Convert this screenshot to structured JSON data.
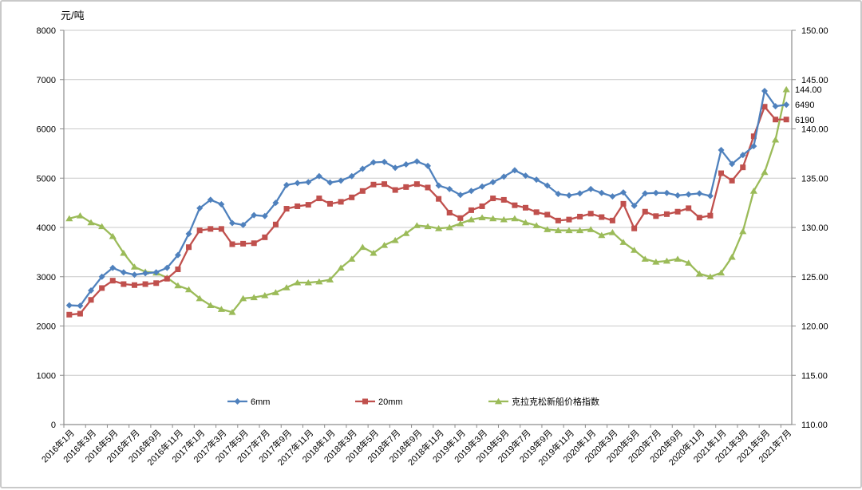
{
  "chart_data": {
    "type": "line",
    "title": "元/吨",
    "n_points": 67,
    "x_step_per_label": 2,
    "x_tick_labels": [
      "2016年1月",
      "2016年3月",
      "2016年5月",
      "2016年7月",
      "2016年9月",
      "2016年11月",
      "2017年1月",
      "2017年3月",
      "2017年5月",
      "2017年7月",
      "2017年9月",
      "2017年11月",
      "2018年1月",
      "2018年3月",
      "2018年5月",
      "2018年7月",
      "2018年9月",
      "2018年11月",
      "2019年1月",
      "2019年3月",
      "2019年5月",
      "2019年7月",
      "2019年9月",
      "2019年11月",
      "2020年1月",
      "2020年3月",
      "2020年5月",
      "2020年7月",
      "2020年9月",
      "2020年11月",
      "2021年1月",
      "2021年3月",
      "2021年5月",
      "2021年7月"
    ],
    "left_axis": {
      "min": 0,
      "max": 8000,
      "step": 1000,
      "labels": [
        "0",
        "1000",
        "2000",
        "3000",
        "4000",
        "5000",
        "6000",
        "7000",
        "8000"
      ]
    },
    "right_axis": {
      "min": 110,
      "max": 150,
      "step": 5,
      "labels": [
        "110.00",
        "115.00",
        "120.00",
        "125.00",
        "130.00",
        "135.00",
        "140.00",
        "145.00",
        "150.00"
      ]
    },
    "grid": true,
    "legend_position": "bottom-inside",
    "series": [
      {
        "name": "6mm",
        "axis": "left",
        "color": "#4F81BD",
        "marker": "diamond",
        "values": [
          2420,
          2410,
          2720,
          3000,
          3180,
          3090,
          3040,
          3070,
          3090,
          3180,
          3440,
          3870,
          4390,
          4560,
          4470,
          4090,
          4050,
          4250,
          4230,
          4500,
          4860,
          4900,
          4920,
          5040,
          4910,
          4950,
          5040,
          5190,
          5320,
          5330,
          5210,
          5280,
          5340,
          5250,
          4850,
          4780,
          4660,
          4740,
          4830,
          4920,
          5030,
          5160,
          5050,
          4970,
          4850,
          4680,
          4650,
          4690,
          4780,
          4700,
          4630,
          4710,
          4440,
          4690,
          4700,
          4700,
          4650,
          4670,
          4690,
          4640,
          5570,
          5290,
          5470,
          5650,
          6770,
          6460,
          6490
        ]
      },
      {
        "name": "20mm",
        "axis": "left",
        "color": "#C0504D",
        "marker": "square",
        "values": [
          2230,
          2250,
          2530,
          2770,
          2920,
          2850,
          2830,
          2850,
          2870,
          2960,
          3150,
          3600,
          3940,
          3970,
          3970,
          3660,
          3670,
          3680,
          3800,
          4060,
          4380,
          4430,
          4460,
          4590,
          4480,
          4520,
          4610,
          4740,
          4870,
          4880,
          4760,
          4820,
          4880,
          4810,
          4580,
          4300,
          4190,
          4350,
          4430,
          4590,
          4560,
          4450,
          4400,
          4310,
          4260,
          4140,
          4160,
          4220,
          4280,
          4210,
          4140,
          4480,
          3980,
          4320,
          4230,
          4270,
          4320,
          4390,
          4200,
          4240,
          5100,
          4950,
          5220,
          5850,
          6450,
          6190,
          6190
        ]
      },
      {
        "name": "克拉克松新船价格指数",
        "axis": "right",
        "color": "#9BBB59",
        "marker": "triangle",
        "values": [
          130.9,
          131.2,
          130.5,
          130.1,
          129.1,
          127.4,
          126.0,
          125.5,
          125.4,
          124.9,
          124.1,
          123.7,
          122.8,
          122.1,
          121.7,
          121.4,
          122.8,
          122.9,
          123.1,
          123.4,
          123.9,
          124.4,
          124.4,
          124.5,
          124.7,
          125.9,
          126.8,
          128.0,
          127.4,
          128.2,
          128.7,
          129.4,
          130.2,
          130.1,
          129.9,
          130.0,
          130.4,
          130.8,
          131.0,
          130.9,
          130.8,
          130.9,
          130.5,
          130.2,
          129.8,
          129.7,
          129.7,
          129.7,
          129.8,
          129.2,
          129.5,
          128.5,
          127.7,
          126.8,
          126.5,
          126.6,
          126.8,
          126.4,
          125.3,
          125.0,
          125.4,
          127.0,
          129.6,
          133.7,
          135.6,
          138.9,
          144.0
        ]
      }
    ],
    "end_labels": [
      {
        "series": "克拉克松新船价格指数",
        "text": "144.00"
      },
      {
        "series": "6mm",
        "text": "6490"
      },
      {
        "series": "20mm",
        "text": "6190"
      }
    ],
    "legend": [
      "6mm",
      "20mm",
      "克拉克松新船价格指数"
    ]
  }
}
